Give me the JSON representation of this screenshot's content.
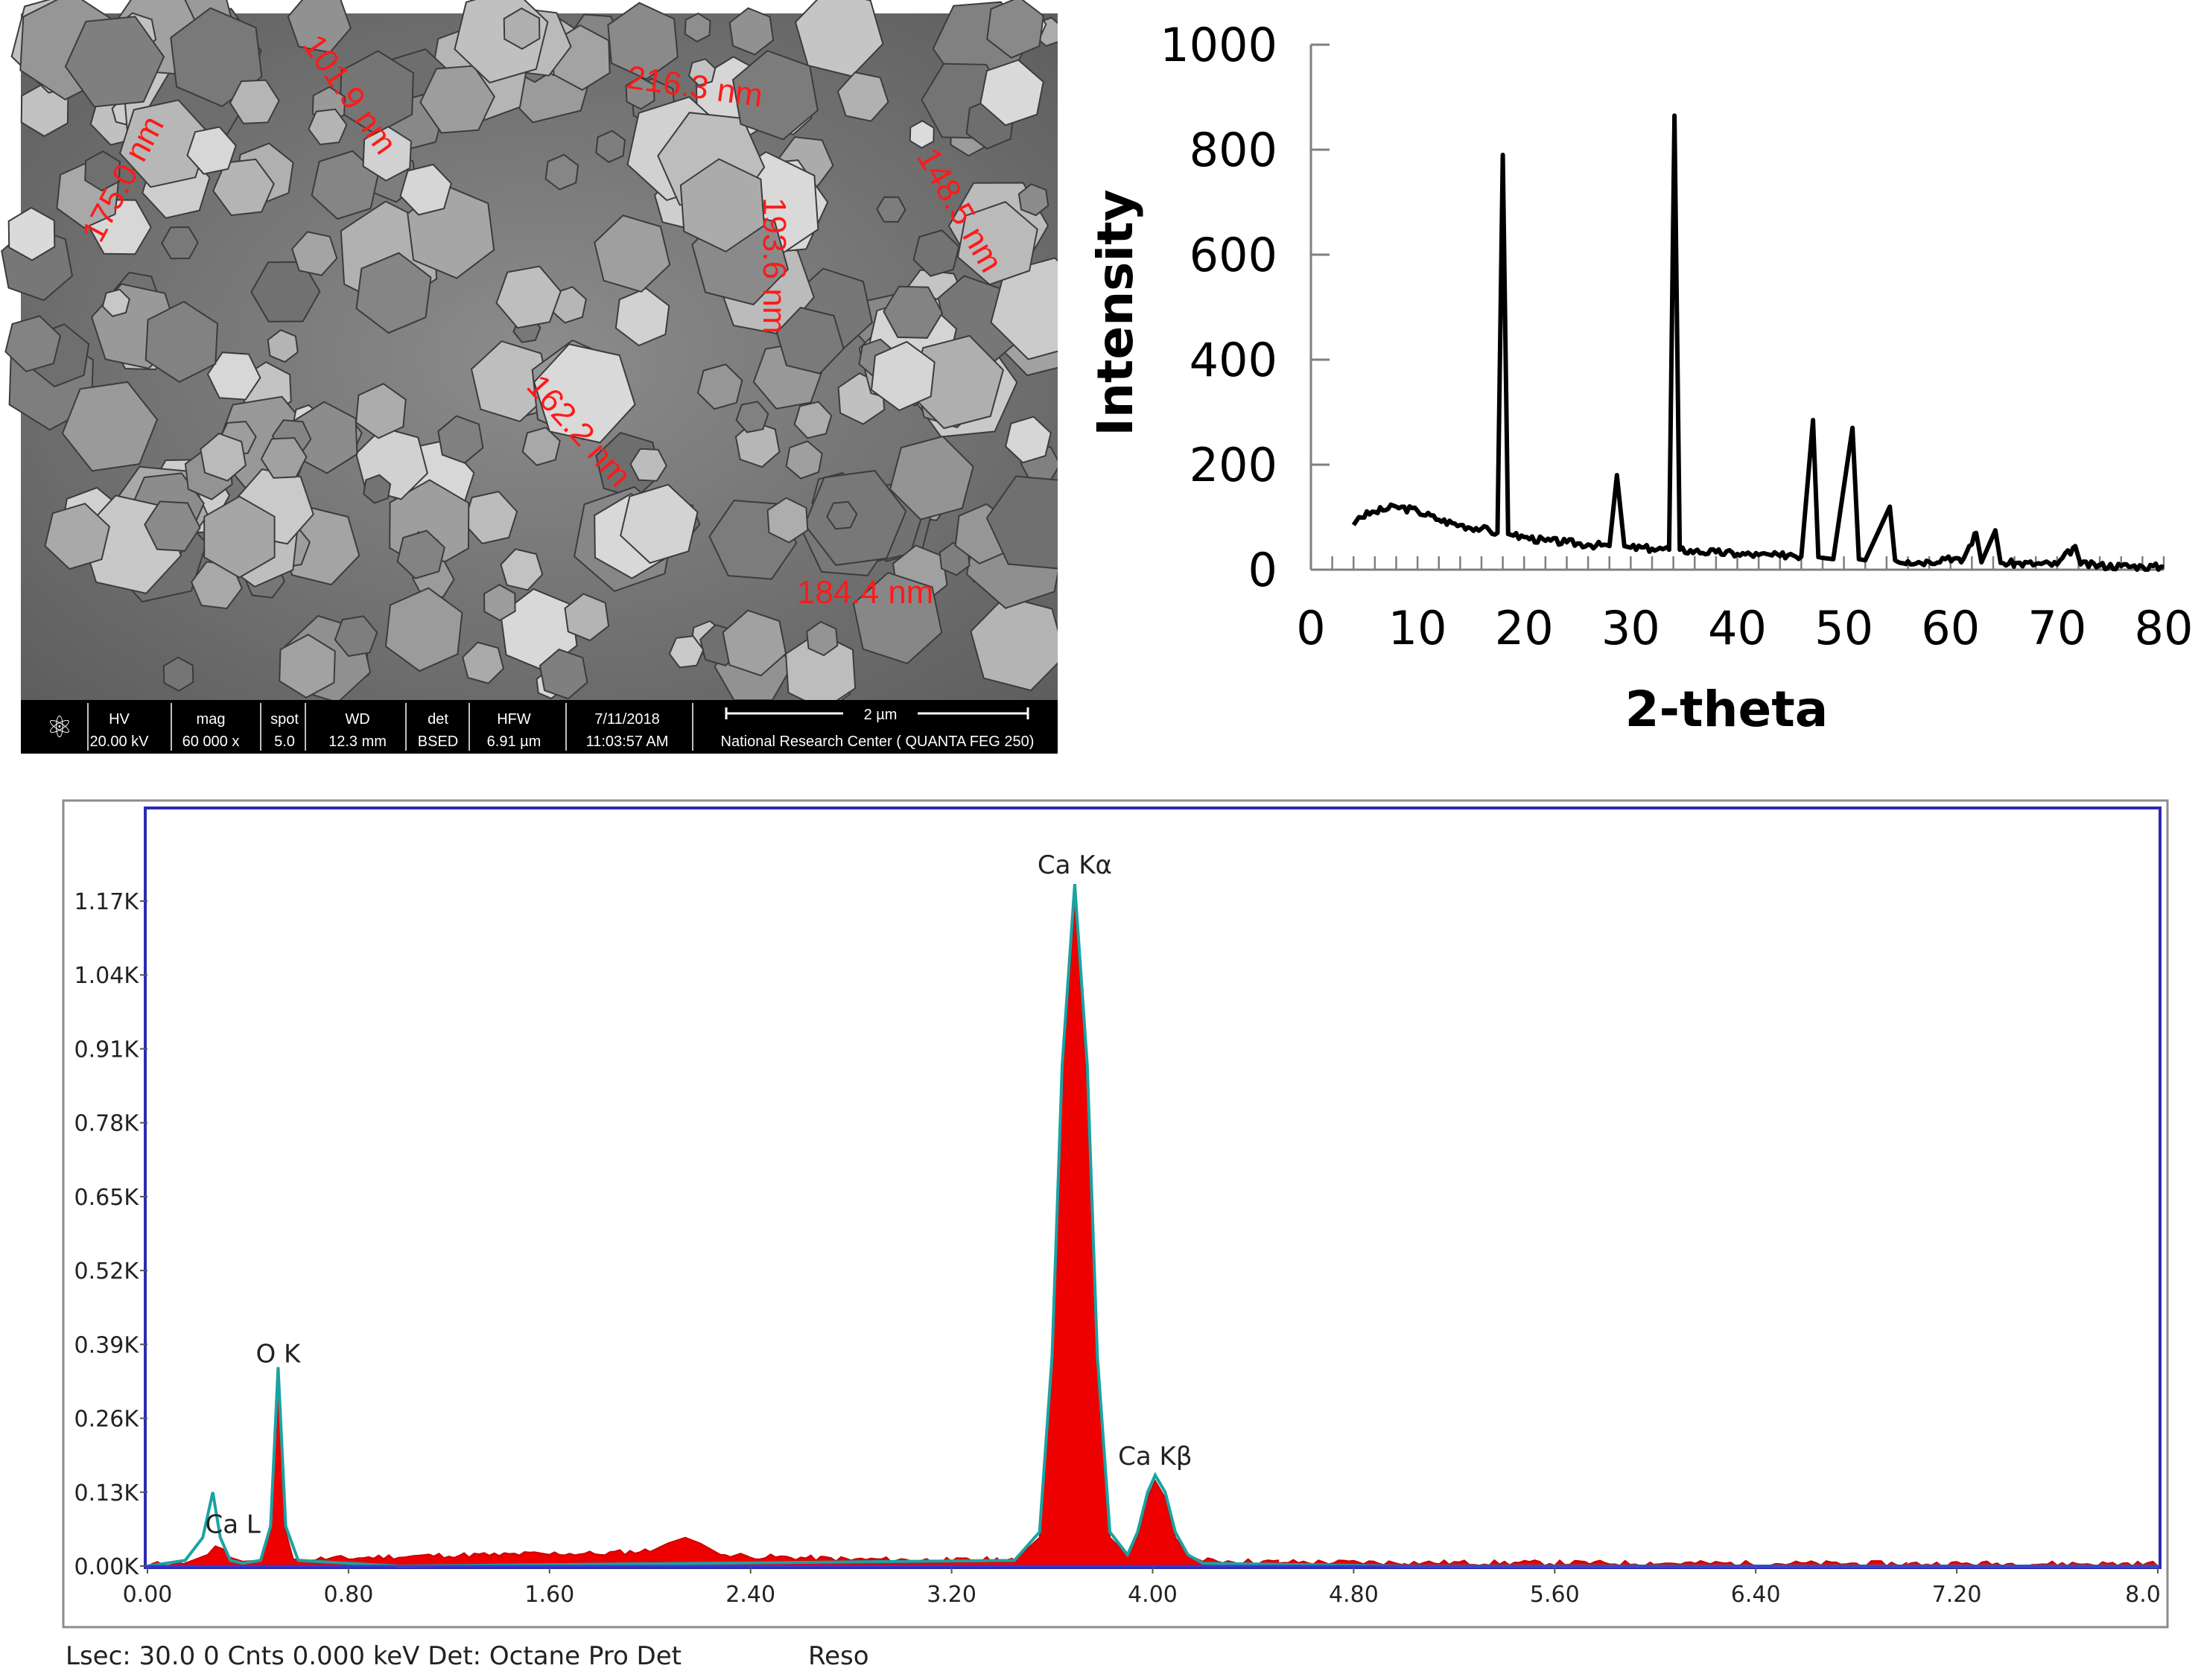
{
  "sem": {
    "measurements": [
      "101.9 nm",
      "216.3 nm",
      "175.0 nm",
      "148.5 nm",
      "193.6 nm",
      "162.2 nm",
      "184.4 nm"
    ],
    "info_bar": {
      "headers": [
        "HV",
        "mag",
        "spot",
        "WD",
        "det",
        "HFW",
        "7/11/2018"
      ],
      "values": [
        "20.00 kV",
        "60 000 x",
        "5.0",
        "12.3 mm",
        "BSED",
        "6.91 µm",
        "11:03:57 AM"
      ],
      "scale_label": "2 µm",
      "center": "National Research Center ( QUANTA FEG 250)"
    },
    "label_color": "#ff1a1a"
  },
  "chart_data": [
    {
      "type": "line",
      "title": "",
      "xlabel": "2-theta",
      "ylabel": "Intensity",
      "xlim": [
        0,
        80
      ],
      "ylim": [
        0,
        1000
      ],
      "x_ticks": [
        "0",
        "10",
        "20",
        "30",
        "40",
        "50",
        "60",
        "70",
        "80"
      ],
      "y_ticks": [
        "0",
        "200",
        "400",
        "600",
        "800",
        "1000"
      ],
      "grid": false,
      "series": [
        {
          "color": "#000000",
          "x": [
            4,
            4.5,
            6,
            8,
            10,
            12,
            14,
            16,
            17.5,
            18.0,
            18.5,
            19,
            20,
            22,
            24,
            26,
            28,
            28.7,
            29.4,
            30,
            32,
            33.6,
            34.1,
            34.6,
            36,
            38,
            40,
            42,
            44,
            45,
            46,
            47.1,
            47.6,
            48.2,
            49,
            50.8,
            51.4,
            52,
            54.3,
            54.8,
            56,
            58,
            59.8,
            61,
            62.4,
            62.9,
            64.2,
            64.7,
            66,
            68,
            70,
            71.7,
            72.2,
            74,
            76,
            78,
            80
          ],
          "y": [
            85,
            100,
            110,
            120,
            112,
            95,
            85,
            78,
            70,
            790,
            68,
            65,
            62,
            55,
            52,
            48,
            45,
            180,
            45,
            42,
            40,
            38,
            865,
            38,
            35,
            33,
            30,
            28,
            26,
            30,
            25,
            285,
            24,
            22,
            20,
            270,
            20,
            18,
            120,
            18,
            16,
            15,
            25,
            14,
            70,
            14,
            75,
            13,
            12,
            11,
            10,
            45,
            10,
            8,
            7,
            6,
            5
          ]
        }
      ]
    },
    {
      "type": "area",
      "title": "",
      "xlabel": "",
      "ylabel": "",
      "xlim": [
        0,
        8
      ],
      "ylim": [
        0,
        1.3
      ],
      "x_ticks": [
        "0.00",
        "0.80",
        "1.60",
        "2.40",
        "3.20",
        "4.00",
        "4.80",
        "5.60",
        "6.40",
        "7.20",
        "8.0"
      ],
      "y_ticks": [
        "0.00K",
        "0.13K",
        "0.26K",
        "0.39K",
        "0.52K",
        "0.65K",
        "0.78K",
        "0.91K",
        "1.04K",
        "1.17K"
      ],
      "annotations": [
        {
          "text": "Ca L",
          "x": 0.34,
          "y": 0.04
        },
        {
          "text": "O  K",
          "x": 0.52,
          "y": 0.34
        },
        {
          "text": "Ca Kα",
          "x": 3.69,
          "y": 1.2
        },
        {
          "text": "Ca Kβ",
          "x": 4.01,
          "y": 0.16
        }
      ],
      "series": [
        {
          "color": "#ee0000",
          "x": [
            0.0,
            0.15,
            0.24,
            0.27,
            0.3,
            0.33,
            0.38,
            0.45,
            0.49,
            0.52,
            0.55,
            0.58,
            0.65,
            0.8,
            1.0,
            1.2,
            1.4,
            1.6,
            1.8,
            2.0,
            2.07,
            2.14,
            2.2,
            2.28,
            2.4,
            2.8,
            3.2,
            3.45,
            3.55,
            3.6,
            3.64,
            3.69,
            3.74,
            3.78,
            3.83,
            3.9,
            3.94,
            3.98,
            4.01,
            4.05,
            4.09,
            4.14,
            4.2,
            4.5,
            5.0,
            6.0,
            7.0,
            8.0
          ],
          "y": [
            0.0,
            0.005,
            0.02,
            0.035,
            0.03,
            0.015,
            0.008,
            0.01,
            0.06,
            0.33,
            0.06,
            0.012,
            0.01,
            0.012,
            0.015,
            0.017,
            0.018,
            0.02,
            0.02,
            0.025,
            0.04,
            0.05,
            0.04,
            0.02,
            0.015,
            0.01,
            0.008,
            0.01,
            0.05,
            0.35,
            0.85,
            1.17,
            0.85,
            0.35,
            0.05,
            0.02,
            0.05,
            0.12,
            0.15,
            0.12,
            0.05,
            0.02,
            0.008,
            0.005,
            0.004,
            0.003,
            0.002,
            0.002
          ]
        },
        {
          "color": "#1aa3a3",
          "x": [
            0.0,
            0.15,
            0.22,
            0.26,
            0.29,
            0.33,
            0.38,
            0.45,
            0.49,
            0.52,
            0.55,
            0.6,
            1.0,
            3.45,
            3.55,
            3.6,
            3.64,
            3.69,
            3.74,
            3.78,
            3.83,
            3.9,
            3.94,
            3.98,
            4.01,
            4.05,
            4.09,
            4.14,
            4.2,
            5.0,
            8.0
          ],
          "y": [
            0.0,
            0.01,
            0.05,
            0.13,
            0.05,
            0.01,
            0.005,
            0.01,
            0.07,
            0.35,
            0.07,
            0.01,
            0.0,
            0.01,
            0.06,
            0.37,
            0.88,
            1.2,
            0.88,
            0.37,
            0.06,
            0.02,
            0.06,
            0.13,
            0.16,
            0.13,
            0.06,
            0.02,
            0.005,
            0.0,
            0.0
          ]
        }
      ],
      "footer": {
        "left": "Lsec: 30.0 0 Cnts  0.000 keV Det: Octane Pro Det",
        "right": "Reso"
      }
    }
  ]
}
